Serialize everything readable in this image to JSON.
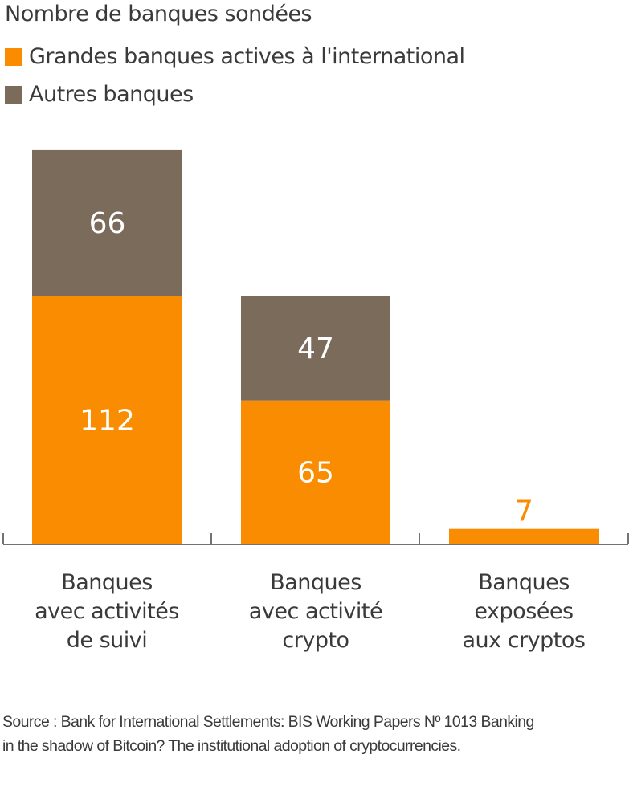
{
  "chart_data": {
    "type": "bar",
    "stacked": true,
    "title": "Nombre de banques sondées",
    "categories": [
      [
        "Banques",
        "avec activités",
        "de suivi"
      ],
      [
        "Banques",
        "avec activité",
        "crypto"
      ],
      [
        "Banques",
        "exposées",
        "aux cryptos"
      ]
    ],
    "series": [
      {
        "name": "Grandes banques actives à l'international",
        "values": [
          112,
          65,
          7
        ],
        "color": "#F98C00"
      },
      {
        "name": "Autres banques",
        "values": [
          66,
          47,
          0
        ],
        "color": "#7B6B5B"
      }
    ],
    "ylim": [
      0,
      178
    ],
    "grid": false,
    "legend_position": "top-left",
    "source": [
      "Source : Bank for International Settlements: BIS Working Papers Nº 1013 Banking",
      "in the shadow of Bitcoin? The institutional adoption of cryptocurrencies."
    ]
  }
}
